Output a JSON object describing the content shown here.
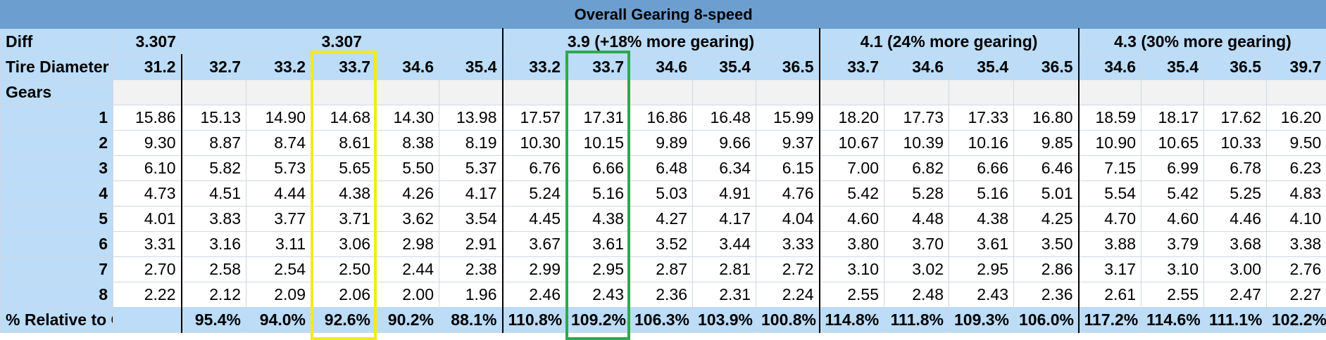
{
  "title": "Overall Gearing 8-speed",
  "labels": {
    "diff": "Diff",
    "tire": "Tire Diameter",
    "gears": "Gears",
    "percent": "% Relative to OEM"
  },
  "diff": {
    "base": "3.307",
    "groups": [
      "3.307",
      "3.9 (+18% more gearing)",
      "4.1 (24% more gearing)",
      "4.3 (30% more gearing)"
    ]
  },
  "tires": [
    "31.2",
    "32.7",
    "33.2",
    "33.7",
    "34.6",
    "35.4",
    "33.2",
    "33.7",
    "34.6",
    "35.4",
    "36.5",
    "33.7",
    "34.6",
    "35.4",
    "36.5",
    "34.6",
    "35.4",
    "36.5",
    "39.7"
  ],
  "gears": [
    {
      "gear": "1",
      "values": [
        "15.86",
        "15.13",
        "14.90",
        "14.68",
        "14.30",
        "13.98",
        "17.57",
        "17.31",
        "16.86",
        "16.48",
        "15.99",
        "18.20",
        "17.73",
        "17.33",
        "16.80",
        "18.59",
        "18.17",
        "17.62",
        "16.20"
      ]
    },
    {
      "gear": "2",
      "values": [
        "9.30",
        "8.87",
        "8.74",
        "8.61",
        "8.38",
        "8.19",
        "10.30",
        "10.15",
        "9.89",
        "9.66",
        "9.37",
        "10.67",
        "10.39",
        "10.16",
        "9.85",
        "10.90",
        "10.65",
        "10.33",
        "9.50"
      ]
    },
    {
      "gear": "3",
      "values": [
        "6.10",
        "5.82",
        "5.73",
        "5.65",
        "5.50",
        "5.37",
        "6.76",
        "6.66",
        "6.48",
        "6.34",
        "6.15",
        "7.00",
        "6.82",
        "6.66",
        "6.46",
        "7.15",
        "6.99",
        "6.78",
        "6.23"
      ]
    },
    {
      "gear": "4",
      "values": [
        "4.73",
        "4.51",
        "4.44",
        "4.38",
        "4.26",
        "4.17",
        "5.24",
        "5.16",
        "5.03",
        "4.91",
        "4.76",
        "5.42",
        "5.28",
        "5.16",
        "5.01",
        "5.54",
        "5.42",
        "5.25",
        "4.83"
      ]
    },
    {
      "gear": "5",
      "values": [
        "4.01",
        "3.83",
        "3.77",
        "3.71",
        "3.62",
        "3.54",
        "4.45",
        "4.38",
        "4.27",
        "4.17",
        "4.04",
        "4.60",
        "4.48",
        "4.38",
        "4.25",
        "4.70",
        "4.60",
        "4.46",
        "4.10"
      ]
    },
    {
      "gear": "6",
      "values": [
        "3.31",
        "3.16",
        "3.11",
        "3.06",
        "2.98",
        "2.91",
        "3.67",
        "3.61",
        "3.52",
        "3.44",
        "3.33",
        "3.80",
        "3.70",
        "3.61",
        "3.50",
        "3.88",
        "3.79",
        "3.68",
        "3.38"
      ]
    },
    {
      "gear": "7",
      "values": [
        "2.70",
        "2.58",
        "2.54",
        "2.50",
        "2.44",
        "2.38",
        "2.99",
        "2.95",
        "2.87",
        "2.81",
        "2.72",
        "3.10",
        "3.02",
        "2.95",
        "2.86",
        "3.17",
        "3.10",
        "3.00",
        "2.76"
      ]
    },
    {
      "gear": "8",
      "values": [
        "2.22",
        "2.12",
        "2.09",
        "2.06",
        "2.00",
        "1.96",
        "2.46",
        "2.43",
        "2.36",
        "2.31",
        "2.24",
        "2.55",
        "2.48",
        "2.43",
        "2.36",
        "2.61",
        "2.55",
        "2.47",
        "2.27"
      ]
    }
  ],
  "percents": [
    "",
    "95.4%",
    "94.0%",
    "92.6%",
    "90.2%",
    "88.1%",
    "110.8%",
    "109.2%",
    "106.3%",
    "103.9%",
    "100.8%",
    "114.8%",
    "111.8%",
    "109.3%",
    "106.0%",
    "117.2%",
    "114.6%",
    "111.1%",
    "102.2%"
  ],
  "highlights": {
    "yellow_color": "#f2ea1d",
    "green_color": "#2ea84f"
  }
}
